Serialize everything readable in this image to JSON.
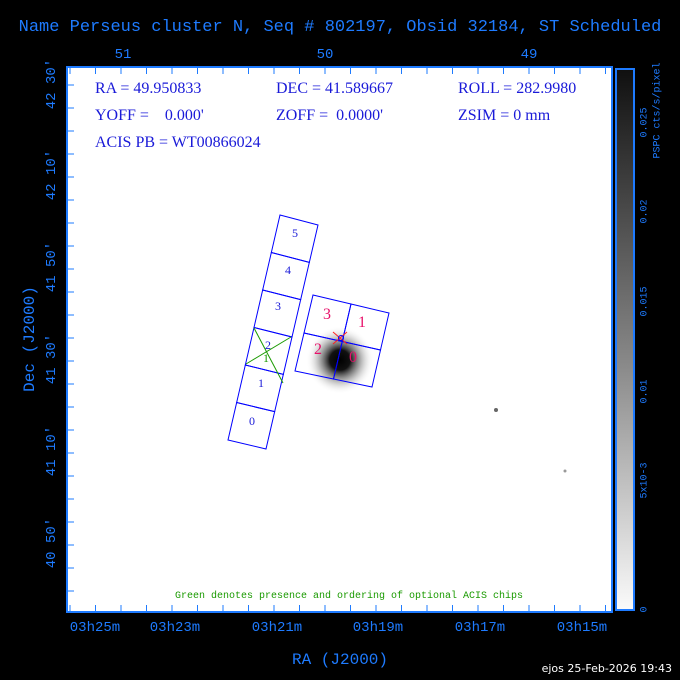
{
  "chart_data": {
    "type": "sky-image",
    "title": "Name Perseus cluster N, Seq # 802197, Obsid 32184, ST Scheduled",
    "xlabel": "RA (J2000)",
    "ylabel": "Dec (J2000)",
    "x_ticks": [
      "03h25m",
      "03h23m",
      "03h21m",
      "03h19m",
      "03h17m",
      "03h15m"
    ],
    "top_ticks": [
      "51",
      "50",
      "49"
    ],
    "y_ticks": [
      "42 30'",
      "42 10'",
      "41 50'",
      "41 30'",
      "41 10'",
      "40 50'"
    ],
    "colorbar": {
      "label": "PSPC cts/s/pixel",
      "ticks": [
        "0",
        "5x10-3",
        "0.01",
        "0.015",
        "0.02",
        "0.025"
      ],
      "colormap": "gray-inverted"
    },
    "info": {
      "ra": "RA = 49.950833",
      "dec": "DEC = 41.589667",
      "roll": "ROLL = 282.9980",
      "yoff": "YOFF =    0.000'",
      "zoff": "ZOFF =  0.0000'",
      "zsim": "ZSIM = 0 mm",
      "pb": "ACIS PB = WT00866024"
    },
    "acis_s_chips": [
      "0",
      "1",
      "2",
      "3",
      "4",
      "5"
    ],
    "acis_i_chips": [
      "3",
      "1",
      "2",
      "0"
    ],
    "optional_chip_label": "1",
    "note": "Green denotes presence and ordering of optional ACIS chips",
    "colors": {
      "axis": "#1e7bff",
      "chips": "#0000ff",
      "i_labels": "#e8106a",
      "optional": "#1a9a00"
    }
  },
  "footer": {
    "stamp": "ejos 25-Feb-2026 19:43"
  }
}
